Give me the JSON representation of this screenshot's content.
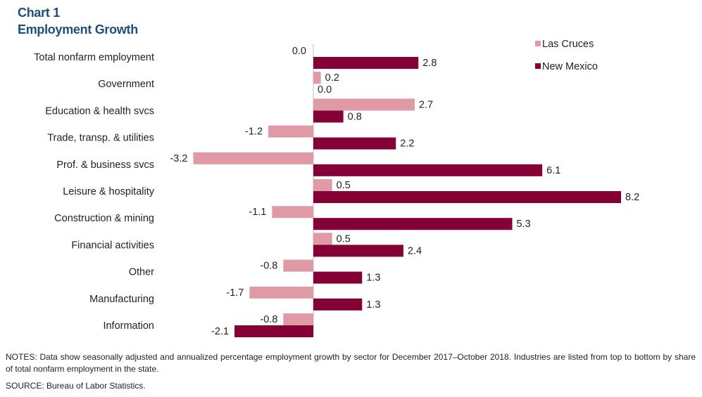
{
  "title": {
    "line1": "Chart 1",
    "line2": "Employment Growth"
  },
  "notes": "NOTES: Data show seasonally adjusted and annualized percentage employment growth by sector for December 2017–October 2018. Industries are listed from top to bottom by share of total nonfarm employment in the state.",
  "source": "SOURCE: Bureau of Labor Statistics.",
  "colors": {
    "las_cruces": "#df9aa5",
    "new_mexico": "#850034",
    "title": "#1f4e79"
  },
  "chart_data": {
    "type": "bar",
    "orientation": "horizontal",
    "categories": [
      "Total nonfarm employment",
      "Government",
      "Education & health svcs",
      "Trade, transp. & utilities",
      "Prof. & business svcs",
      "Leisure & hospitality",
      "Construction & mining",
      "Financial activities",
      "Other",
      "Manufacturing",
      "Information"
    ],
    "series": [
      {
        "name": "Las Cruces",
        "color": "#df9aa5",
        "values": [
          0.0,
          0.2,
          2.7,
          -1.2,
          -3.2,
          0.5,
          -1.1,
          0.5,
          -0.8,
          -1.7,
          -0.8
        ],
        "labels": [
          "0.0",
          "0.2",
          "2.7",
          "-1.2",
          "-3.2",
          "0.5",
          "-1.1",
          "0.5",
          "-0.8",
          "-1.7",
          "-0.8"
        ]
      },
      {
        "name": "New Mexico",
        "color": "#850034",
        "values": [
          2.8,
          0.0,
          0.8,
          2.2,
          6.1,
          8.2,
          5.3,
          2.4,
          1.3,
          1.3,
          -2.1
        ],
        "labels": [
          "2.8",
          "0.0",
          "0.8",
          "2.2",
          "6.1",
          "8.2",
          "5.3",
          "2.4",
          "1.3",
          "1.3",
          "-2.1"
        ]
      }
    ],
    "legend_position": "top-right",
    "grid": false,
    "data_labels": true
  }
}
